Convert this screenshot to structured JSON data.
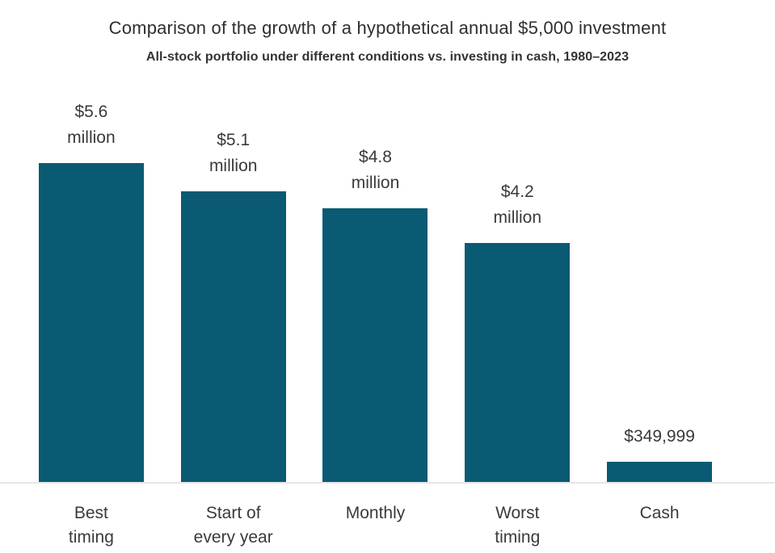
{
  "header": {
    "title": "Comparison of the growth of a hypothetical annual $5,000 investment",
    "subtitle": "All-stock portfolio under different conditions vs. investing in cash, 1980–2023"
  },
  "colors": {
    "bar": "#0a5a74",
    "text": "#3a3a3a",
    "baseline": "#e6e6e6",
    "background": "#ffffff"
  },
  "chart_data": {
    "type": "bar",
    "title": "Comparison of the growth of a hypothetical annual $5,000 investment",
    "subtitle": "All-stock portfolio under different conditions vs. investing in cash, 1980–2023",
    "categories": [
      "Best timing",
      "Start of every year",
      "Monthly",
      "Worst timing",
      "Cash"
    ],
    "values": [
      5600000,
      5100000,
      4800000,
      4200000,
      349999
    ],
    "ylim": [
      0,
      5600000
    ],
    "grid": false,
    "legend": false,
    "orientation": "vertical",
    "bars": [
      {
        "category": "Best\ntiming",
        "value_label": "$5.6\nmillion",
        "value": 5600000
      },
      {
        "category": "Start of\nevery year",
        "value_label": "$5.1\nmillion",
        "value": 5100000
      },
      {
        "category": "Monthly",
        "value_label": "$4.8\nmillion",
        "value": 4800000
      },
      {
        "category": "Worst\ntiming",
        "value_label": "$4.2\nmillion",
        "value": 4200000
      },
      {
        "category": "Cash",
        "value_label": "$349,999",
        "value": 349999
      }
    ]
  }
}
